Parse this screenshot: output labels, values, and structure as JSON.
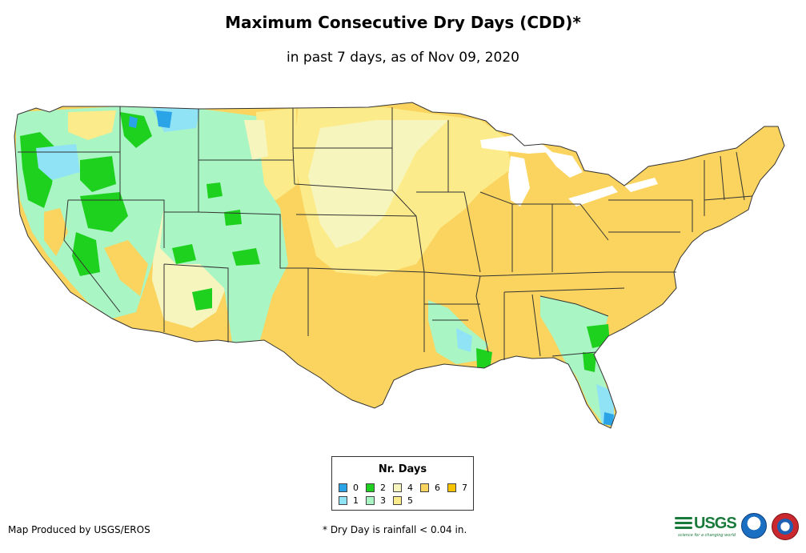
{
  "title": "Maximum Consecutive Dry Days (CDD)*",
  "subtitle": "in past 7 days, as of Nov 09, 2020",
  "legend": {
    "title": "Nr. Days",
    "items": [
      {
        "label": "0",
        "color": "#2aa4e6"
      },
      {
        "label": "1",
        "color": "#8fe3f5"
      },
      {
        "label": "2",
        "color": "#1fd11f"
      },
      {
        "label": "3",
        "color": "#a9f5c4"
      },
      {
        "label": "4",
        "color": "#f7f5be"
      },
      {
        "label": "5",
        "color": "#fbeb8a"
      },
      {
        "label": "6",
        "color": "#fad45e"
      },
      {
        "label": "7",
        "color": "#f7c200"
      }
    ]
  },
  "credit": "Map Produced by USGS/EROS",
  "footnote": "* Dry Day is rainfall < 0.04 in.",
  "logos": {
    "usgs": "USGS",
    "usgs_tagline": "science for a changing world",
    "noaa": "noaa-logo-icon",
    "nws": "nws-logo-icon"
  },
  "colors": {
    "state_border": "#333333",
    "background": "#ffffff"
  }
}
